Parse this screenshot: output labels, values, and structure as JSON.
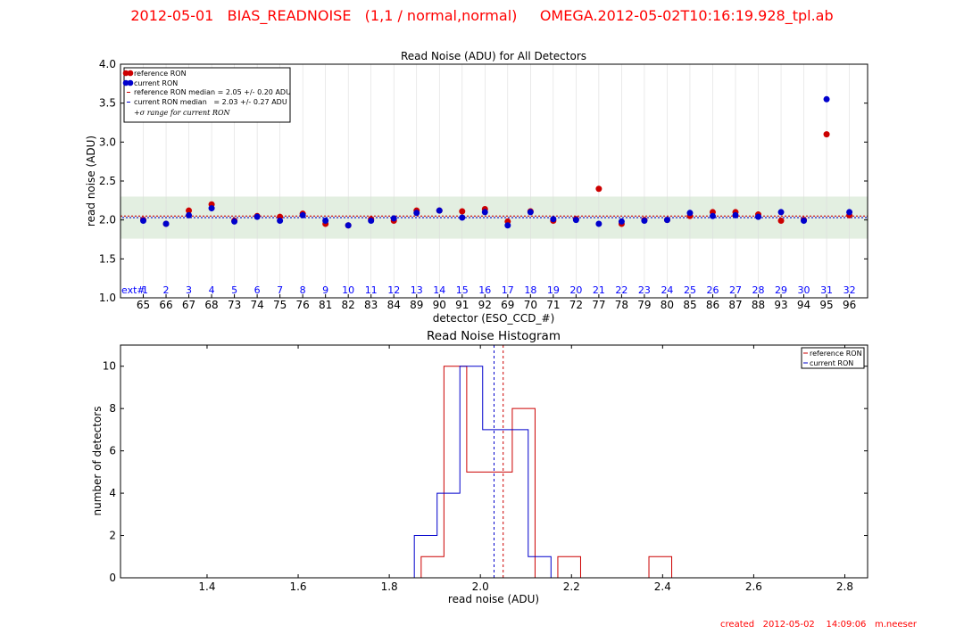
{
  "header": {
    "title": "2012-05-01   BIAS_READNOISE   (1,1 / normal,normal)     OMEGA.2012-05-02T10:16:19.928_tpl.ab"
  },
  "footer": {
    "text": "created   2012-05-02    14:09:06   m.neeser"
  },
  "colors": {
    "reference": "#cc0000",
    "current": "#0000cc",
    "band": "#e3efe1",
    "header": "#ff0000"
  },
  "chart_data": [
    {
      "type": "scatter",
      "title": "Read Noise (ADU) for All Detectors",
      "xlabel": "detector (ESO_CCD_#)",
      "ylabel": "read noise (ADU)",
      "ylim": [
        1.0,
        4.0
      ],
      "yticks": [
        "1.0",
        "1.5",
        "2.0",
        "2.5",
        "3.0",
        "3.5",
        "4.0"
      ],
      "ext_prefix": "ext#",
      "ext_labels": [
        "1",
        "2",
        "3",
        "4",
        "5",
        "6",
        "7",
        "8",
        "9",
        "10",
        "11",
        "12",
        "13",
        "14",
        "15",
        "16",
        "17",
        "18",
        "19",
        "20",
        "21",
        "22",
        "23",
        "24",
        "25",
        "26",
        "27",
        "28",
        "29",
        "30",
        "31",
        "32"
      ],
      "categories": [
        "65",
        "66",
        "67",
        "68",
        "73",
        "74",
        "75",
        "76",
        "81",
        "82",
        "83",
        "84",
        "89",
        "90",
        "91",
        "92",
        "69",
        "70",
        "71",
        "72",
        "77",
        "78",
        "79",
        "80",
        "85",
        "86",
        "87",
        "88",
        "93",
        "94",
        "95",
        "96"
      ],
      "series": [
        {
          "name": "reference RON",
          "values": [
            2.0,
            1.95,
            2.12,
            2.2,
            1.99,
            2.05,
            2.04,
            2.08,
            1.95,
            1.93,
            2.01,
            1.99,
            2.12,
            2.12,
            2.11,
            2.14,
            1.98,
            2.11,
            1.99,
            2.01,
            2.4,
            1.95,
            2.0,
            2.0,
            2.05,
            2.1,
            2.1,
            2.07,
            1.99,
            2.0,
            3.1,
            2.06
          ]
        },
        {
          "name": "current RON",
          "values": [
            1.99,
            1.95,
            2.06,
            2.15,
            1.98,
            2.04,
            1.99,
            2.06,
            1.99,
            1.93,
            1.99,
            2.02,
            2.09,
            2.12,
            2.03,
            2.1,
            1.93,
            2.1,
            2.01,
            2.0,
            1.95,
            1.98,
            1.99,
            2.0,
            2.09,
            2.05,
            2.06,
            2.04,
            2.1,
            1.99,
            3.55,
            2.1
          ]
        }
      ],
      "reference_median": 2.05,
      "current_median": 2.03,
      "sigma_band": [
        1.76,
        2.3
      ],
      "legend": {
        "position": "top-left",
        "entries": [
          "reference RON",
          "current RON",
          "reference RON median = 2.05 +/- 0.20 ADU",
          "current RON median   = 2.03 +/- 0.27 ADU",
          "+σ range for current RON"
        ]
      }
    },
    {
      "type": "histogram",
      "title": "Read Noise Histogram",
      "xlabel": "read noise (ADU)",
      "ylabel": "number of detectors",
      "xlim": [
        1.21,
        2.85
      ],
      "ylim": [
        0,
        11
      ],
      "xticks": [
        "1.4",
        "1.6",
        "1.8",
        "2.0",
        "2.2",
        "2.4",
        "2.6",
        "2.8"
      ],
      "yticks": [
        "0",
        "2",
        "4",
        "6",
        "8",
        "10"
      ],
      "series": [
        {
          "name": "reference RON",
          "bins": [
            {
              "x0": 1.87,
              "x1": 1.92,
              "count": 1
            },
            {
              "x0": 1.92,
              "x1": 1.97,
              "count": 10
            },
            {
              "x0": 1.97,
              "x1": 2.02,
              "count": 5
            },
            {
              "x0": 2.02,
              "x1": 2.07,
              "count": 5
            },
            {
              "x0": 2.07,
              "x1": 2.12,
              "count": 8
            },
            {
              "x0": 2.12,
              "x1": 2.17,
              "count": 0
            },
            {
              "x0": 2.17,
              "x1": 2.22,
              "count": 1
            },
            {
              "x0": 2.37,
              "x1": 2.42,
              "count": 1
            }
          ]
        },
        {
          "name": "current RON",
          "bins": [
            {
              "x0": 1.855,
              "x1": 1.905,
              "count": 2
            },
            {
              "x0": 1.905,
              "x1": 1.955,
              "count": 4
            },
            {
              "x0": 1.955,
              "x1": 2.005,
              "count": 10
            },
            {
              "x0": 2.005,
              "x1": 2.055,
              "count": 7
            },
            {
              "x0": 2.055,
              "x1": 2.105,
              "count": 7
            },
            {
              "x0": 2.105,
              "x1": 2.155,
              "count": 1
            }
          ]
        }
      ],
      "reference_median": 2.05,
      "current_median": 2.03,
      "legend": {
        "position": "top-right",
        "entries": [
          "reference RON",
          "current RON"
        ]
      }
    }
  ]
}
